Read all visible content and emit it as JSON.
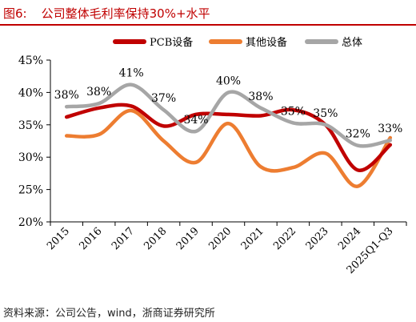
{
  "figure": {
    "number": "图6:",
    "title": "公司整体毛利率保持30%+水平",
    "source": "资料来源：公司公告，wind，浙商证券研究所"
  },
  "colors": {
    "title": "#c00000",
    "axis": "#000000"
  },
  "chart_data": {
    "type": "line",
    "title": "",
    "xlabel": "",
    "ylabel": "",
    "smooth": true,
    "grid": false,
    "legend_position": "top",
    "categories": [
      "2015",
      "2016",
      "2017",
      "2018",
      "2019",
      "2020",
      "2021",
      "2022",
      "2023",
      "2024",
      "2025Q1-Q3"
    ],
    "ylim": [
      20,
      45
    ],
    "yticks": [
      20,
      25,
      30,
      35,
      40,
      45
    ],
    "ytick_labels": [
      "20%",
      "25%",
      "30%",
      "35%",
      "40%",
      "45%"
    ],
    "series": [
      {
        "name": "PCB设备",
        "color": "#c00000",
        "values": [
          36.2,
          37.6,
          37.9,
          34.8,
          36.6,
          36.6,
          36.4,
          37.3,
          35.0,
          28.0,
          31.9
        ]
      },
      {
        "name": "其他设备",
        "color": "#ed7d31",
        "values": [
          33.3,
          33.5,
          37.2,
          32.5,
          29.2,
          35.2,
          28.5,
          28.4,
          30.6,
          25.5,
          33.0
        ]
      },
      {
        "name": "总体",
        "color": "#a6a6a6",
        "values": [
          37.8,
          38.3,
          41.2,
          37.3,
          34.0,
          40.0,
          37.6,
          35.3,
          35.0,
          31.8,
          32.6
        ],
        "data_labels": [
          "38%",
          "38%",
          "41%",
          "37%",
          "34%",
          "40%",
          "38%",
          "35%",
          "35%",
          "32%",
          "33%"
        ]
      }
    ]
  }
}
